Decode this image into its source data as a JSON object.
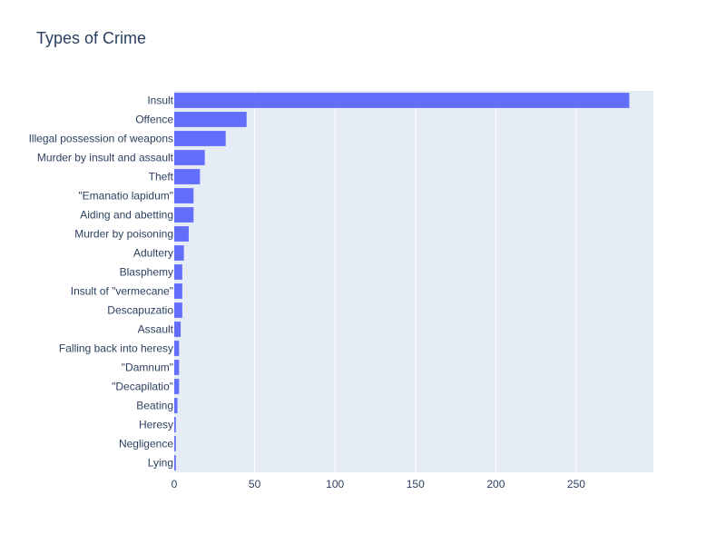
{
  "chart_data": {
    "type": "bar",
    "orientation": "horizontal",
    "title": "Types of Crime",
    "xlabel": "",
    "ylabel": "",
    "categories": [
      "Insult",
      "Offence",
      "Illegal possession of weapons",
      "Murder by insult and assault",
      "Theft",
      "\"Emanatio lapidum\"",
      "Aiding and abetting",
      "Murder by poisoning",
      "Adultery",
      "Blasphemy",
      "Insult of \"vermecane\"",
      "Descapuzatio",
      "Assault",
      "Falling back into heresy",
      "\"Damnum\"",
      "\"Decapilatio\"",
      "Beating",
      "Heresy",
      "Negligence",
      "Lying"
    ],
    "values": [
      283,
      45,
      32,
      19,
      16,
      12,
      12,
      9,
      6,
      5,
      5,
      5,
      4,
      3,
      3,
      3,
      2,
      1,
      1,
      1
    ],
    "xlim": [
      0,
      298
    ],
    "xticks": [
      0,
      50,
      100,
      150,
      200,
      250
    ],
    "grid": true,
    "legend": "none",
    "colors": {
      "bar": "#636efa",
      "plot_bg": "#e5ecf6",
      "grid": "#ffffff",
      "text": "#2a3f5f"
    }
  }
}
